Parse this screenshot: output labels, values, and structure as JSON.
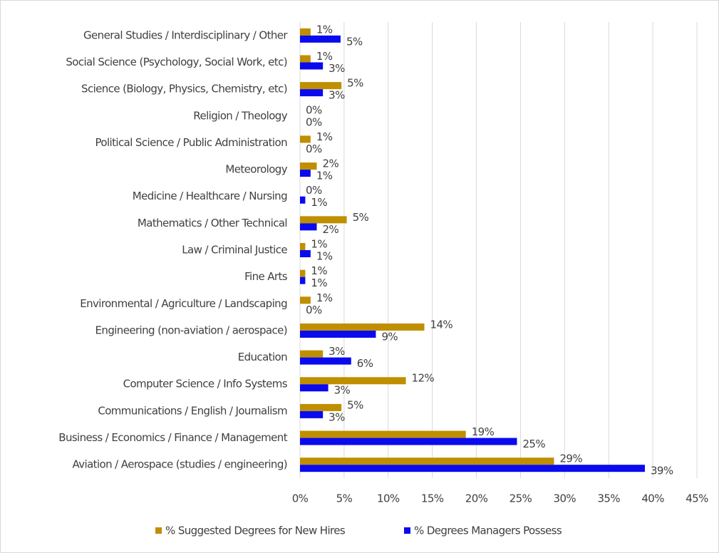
{
  "chart_data": {
    "type": "bar",
    "orientation": "horizontal",
    "categories": [
      "Aviation / Aerospace (studies / engineering)",
      "Business / Economics / Finance / Management",
      "Communications / English / Journalism",
      "Computer Science / Info Systems",
      "Education",
      "Engineering (non-aviation / aerospace)",
      "Environmental / Agriculture / Landscaping",
      "Fine Arts",
      "Law / Criminal Justice",
      "Mathematics / Other Technical",
      "Medicine / Healthcare / Nursing",
      "Meteorology",
      "Political Science / Public Administration",
      "Religion / Theology",
      "Science (Biology, Physics, Chemistry, etc)",
      "Social Science (Psychology, Social Work, etc)",
      "General Studies / Interdisciplinary / Other"
    ],
    "series": [
      {
        "name": "% Suggested Degrees for New Hires",
        "color": "#bf8f00",
        "values": [
          28.8,
          18.8,
          4.7,
          12.0,
          2.6,
          14.1,
          1.2,
          0.6,
          0.6,
          5.3,
          0,
          1.9,
          1.2,
          0,
          4.7,
          1.2,
          1.2
        ],
        "value_labels": [
          "29%",
          "19%",
          "5%",
          "12%",
          "3%",
          "14%",
          "1%",
          "1%",
          "1%",
          "5%",
          "0%",
          "2%",
          "1%",
          "0%",
          "5%",
          "1%",
          "1%"
        ]
      },
      {
        "name": "% Degrees Managers Possess",
        "color": "#0a0aee",
        "values": [
          39.1,
          24.6,
          2.6,
          3.2,
          5.8,
          8.6,
          0,
          0.6,
          1.2,
          1.9,
          0.6,
          1.2,
          0,
          0,
          2.6,
          2.6,
          4.6
        ],
        "value_labels": [
          "39%",
          "25%",
          "3%",
          "3%",
          "6%",
          "9%",
          "0%",
          "1%",
          "1%",
          "2%",
          "1%",
          "1%",
          "0%",
          "0%",
          "3%",
          "3%",
          "5%"
        ]
      }
    ],
    "xlim": [
      0,
      45
    ],
    "xticks": [
      {
        "value": 0,
        "label": "0%"
      },
      {
        "value": 5,
        "label": "5%"
      },
      {
        "value": 10,
        "label": "10%"
      },
      {
        "value": 15,
        "label": "15%"
      },
      {
        "value": 20,
        "label": "20%"
      },
      {
        "value": 25,
        "label": "25%"
      },
      {
        "value": 30,
        "label": "30%"
      },
      {
        "value": 35,
        "label": "35%"
      },
      {
        "value": 40,
        "label": "40%"
      },
      {
        "value": 45,
        "label": "45%"
      }
    ],
    "grid": true,
    "legend": "bottom"
  }
}
